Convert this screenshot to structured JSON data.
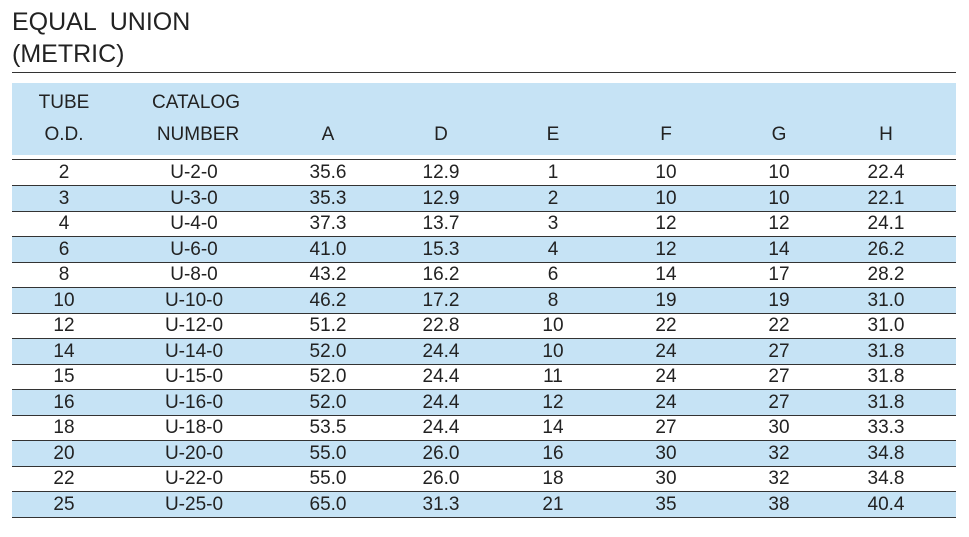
{
  "title": {
    "line1": "EQUAL  UNION",
    "line2": "(METRIC)"
  },
  "table": {
    "header_top": [
      "TUBE",
      "CATALOG"
    ],
    "header": [
      "O.D.",
      "NUMBER",
      "A",
      "D",
      "E",
      "F",
      "G",
      "H"
    ],
    "rows": [
      [
        "2",
        "U-2-0",
        "35.6",
        "12.9",
        "1",
        "10",
        "10",
        "22.4"
      ],
      [
        "3",
        "U-3-0",
        "35.3",
        "12.9",
        "2",
        "10",
        "10",
        "22.1"
      ],
      [
        "4",
        "U-4-0",
        "37.3",
        "13.7",
        "3",
        "12",
        "12",
        "24.1"
      ],
      [
        "6",
        "U-6-0",
        "41.0",
        "15.3",
        "4",
        "12",
        "14",
        "26.2"
      ],
      [
        "8",
        "U-8-0",
        "43.2",
        "16.2",
        "6",
        "14",
        "17",
        "28.2"
      ],
      [
        "10",
        "U-10-0",
        "46.2",
        "17.2",
        "8",
        "19",
        "19",
        "31.0"
      ],
      [
        "12",
        "U-12-0",
        "51.2",
        "22.8",
        "10",
        "22",
        "22",
        "31.0"
      ],
      [
        "14",
        "U-14-0",
        "52.0",
        "24.4",
        "10",
        "24",
        "27",
        "31.8"
      ],
      [
        "15",
        "U-15-0",
        "52.0",
        "24.4",
        "11",
        "24",
        "27",
        "31.8"
      ],
      [
        "16",
        "U-16-0",
        "52.0",
        "24.4",
        "12",
        "24",
        "27",
        "31.8"
      ],
      [
        "18",
        "U-18-0",
        "53.5",
        "24.4",
        "14",
        "27",
        "30",
        "33.3"
      ],
      [
        "20",
        "U-20-0",
        "55.0",
        "26.0",
        "16",
        "30",
        "32",
        "34.8"
      ],
      [
        "22",
        "U-22-0",
        "55.0",
        "26.0",
        "18",
        "30",
        "32",
        "34.8"
      ],
      [
        "25",
        "U-25-0",
        "65.0",
        "31.3",
        "21",
        "35",
        "38",
        "40.4"
      ]
    ]
  }
}
